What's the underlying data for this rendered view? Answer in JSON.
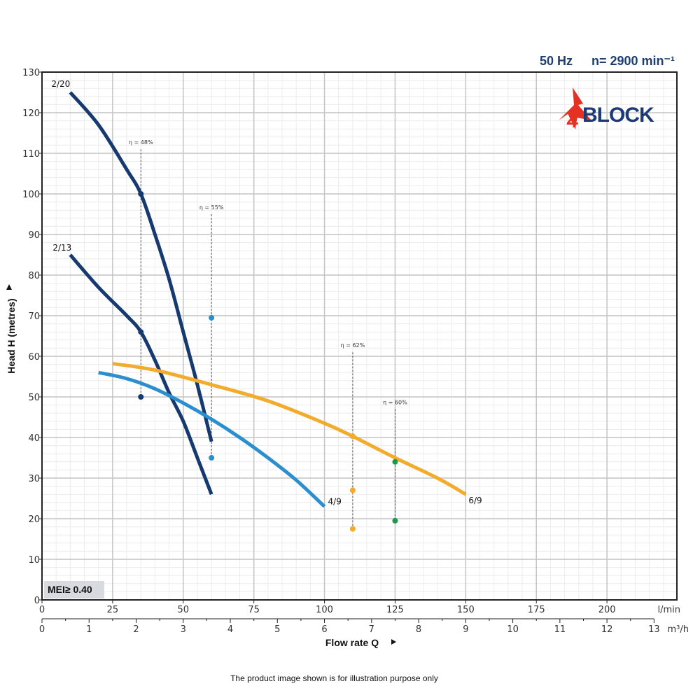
{
  "header": {
    "frequency": "50 Hz",
    "speed": "n= 2900 min⁻¹"
  },
  "logo": {
    "text": "BLOCK",
    "prefix": "4",
    "colors": {
      "prefix": "#e53124",
      "text": "#1d3a78"
    }
  },
  "mei_label": "MEI≥ 0.40",
  "footnote": "The product image shown is for illustration purpose only",
  "chart_data": {
    "type": "line",
    "ylabel": "Head H (metres)",
    "xlabel": "Flow rate Q",
    "ylim": [
      0,
      130
    ],
    "xlim_lmin": [
      0,
      225
    ],
    "y_ticks": [
      0,
      10,
      20,
      30,
      40,
      50,
      60,
      70,
      80,
      90,
      100,
      110,
      120,
      130
    ],
    "x_ticks_lmin": [
      0,
      25,
      50,
      75,
      100,
      125,
      150,
      175,
      200
    ],
    "x_unit_lmin": "l/min",
    "x_ticks_m3h": [
      0,
      1,
      2,
      3,
      4,
      5,
      6,
      7,
      8,
      9,
      10,
      11,
      12,
      13
    ],
    "x_unit_m3h": "m³/h",
    "grid": true,
    "series": [
      {
        "name": "2/20",
        "color": "#163a70",
        "x": [
          10,
          20,
          30,
          35,
          40,
          45,
          50,
          55,
          60
        ],
        "y": [
          125,
          117,
          106,
          100,
          90,
          79,
          66,
          53,
          39
        ]
      },
      {
        "name": "2/13",
        "color": "#163a70",
        "x": [
          10,
          20,
          30,
          35,
          40,
          45,
          50,
          55,
          60
        ],
        "y": [
          85,
          77,
          70,
          66,
          59,
          51,
          44,
          35,
          26
        ]
      },
      {
        "name": "4/9",
        "color": "#2b8fcf",
        "x": [
          20,
          30,
          40,
          50,
          60,
          70,
          80,
          90,
          100
        ],
        "y": [
          56,
          54.5,
          52,
          48.5,
          44.5,
          40,
          35,
          29.5,
          23
        ]
      },
      {
        "name": "6/9",
        "color": "#f2ab2b",
        "x": [
          25,
          40,
          60,
          80,
          100,
          110,
          125,
          140,
          150
        ],
        "y": [
          58.2,
          56.6,
          53,
          49,
          43.5,
          40.3,
          35,
          30,
          26
        ]
      }
    ],
    "efficiency_markers": [
      {
        "label": "η = 48%",
        "x": 35,
        "y_top": 111,
        "points": [
          {
            "y": 100,
            "color": "#163a70"
          },
          {
            "y": 66,
            "color": "#163a70"
          },
          {
            "y": 50,
            "color": "#163a70"
          }
        ]
      },
      {
        "label": "η = 55%",
        "x": 60,
        "y_top": 95,
        "points": [
          {
            "y": 69.5,
            "color": "#2b8fcf"
          },
          {
            "y": 35,
            "color": "#2b8fcf"
          }
        ]
      },
      {
        "label": "η = 62%",
        "x": 110,
        "y_top": 61,
        "points": [
          {
            "y": 40.3,
            "color": "#f2ab2b"
          },
          {
            "y": 27,
            "color": "#f2ab2b"
          },
          {
            "y": 17.5,
            "color": "#f2ab2b"
          }
        ]
      },
      {
        "label": "η = 60%",
        "x": 125,
        "y_top": 47,
        "points": [
          {
            "y": 34,
            "color": "#1a9a4b"
          },
          {
            "y": 19.5,
            "color": "#1a9a4b"
          }
        ]
      }
    ]
  }
}
